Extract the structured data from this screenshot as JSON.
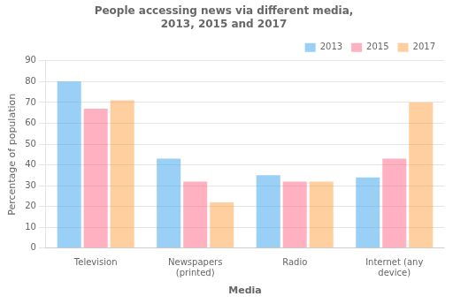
{
  "chart_data": {
    "type": "bar",
    "title": "People accessing news via different media,\n2013, 2015 and 2017",
    "xlabel": "Media",
    "ylabel": "Percentage of population",
    "categories": [
      "Television",
      "Newspapers\n(printed)",
      "Radio",
      "Internet (any\ndevice)"
    ],
    "series": [
      {
        "name": "2013",
        "values": [
          80,
          43,
          35,
          34
        ]
      },
      {
        "name": "2015",
        "values": [
          67,
          32,
          32,
          43
        ]
      },
      {
        "name": "2017",
        "values": [
          71,
          22,
          32,
          70
        ]
      }
    ],
    "ylim": [
      0,
      90
    ],
    "yticks": [
      0,
      10,
      20,
      30,
      40,
      50,
      60,
      70,
      80,
      90
    ],
    "grid": true,
    "legend": "upper right"
  }
}
